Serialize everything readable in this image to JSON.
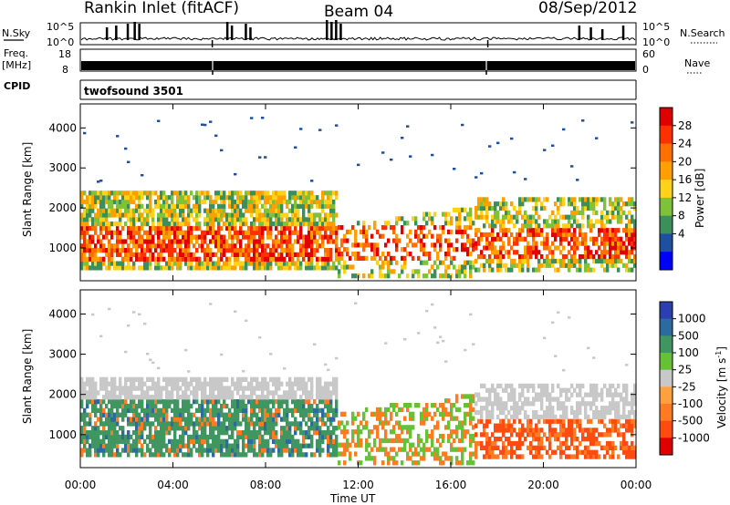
{
  "header": {
    "radar_title": "Rankin Inlet (fitACF)",
    "beam": "Beam 04",
    "date": "08/Sep/2012"
  },
  "chart_data": [
    {
      "type": "line",
      "id": "noise",
      "left_label": "N.Sky",
      "right_label": "N.Search",
      "ytick_labels": [
        "10^5",
        "10^0"
      ],
      "yscale": "log"
    },
    {
      "type": "line",
      "id": "freq",
      "left_label": "Freq.",
      "left_unit": "[MHz]",
      "right_label": "Nave",
      "left_ticks": [
        18,
        8
      ],
      "right_ticks": [
        60,
        0
      ]
    },
    {
      "type": "table",
      "id": "cpid",
      "label": "CPID",
      "value": "twofsound 3501"
    },
    {
      "type": "heatmap",
      "id": "power",
      "ylabel": "Slant Range [km]",
      "yticks": [
        1000,
        2000,
        3000,
        4000
      ],
      "ylim": [
        180,
        4600
      ],
      "colorbar_label": "Power [dB]",
      "colorbar_ticks": [
        28,
        24,
        20,
        16,
        12,
        8,
        4
      ],
      "colors": [
        "#e00000",
        "#ff3000",
        "#ff7000",
        "#ffa000",
        "#ffd21a",
        "#7fc23a",
        "#3a8f5a",
        "#1f4fa0",
        "#0000ff"
      ]
    },
    {
      "type": "heatmap",
      "id": "velocity",
      "ylabel": "Slant Range [km]",
      "yticks": [
        1000,
        2000,
        3000,
        4000
      ],
      "ylim": [
        180,
        4600
      ],
      "colorbar_label": "Velocity [m s",
      "colorbar_unit_sup": "-1",
      "colorbar_ticks": [
        "1000",
        "500",
        "100",
        "25",
        "-25",
        "-100",
        "-500",
        "-1000"
      ],
      "colors": [
        "#2b3fb0",
        "#2d6aa0",
        "#3f9660",
        "#66c235",
        "#c8c8c8",
        "#ffa040",
        "#ff7a20",
        "#ff4a10",
        "#e00000"
      ],
      "xlabel": "Time UT",
      "xtick_labels": [
        "00:00",
        "04:00",
        "08:00",
        "12:00",
        "16:00",
        "20:00",
        "00:00"
      ],
      "x_hours": [
        0,
        4,
        8,
        12,
        16,
        20,
        24
      ]
    }
  ]
}
